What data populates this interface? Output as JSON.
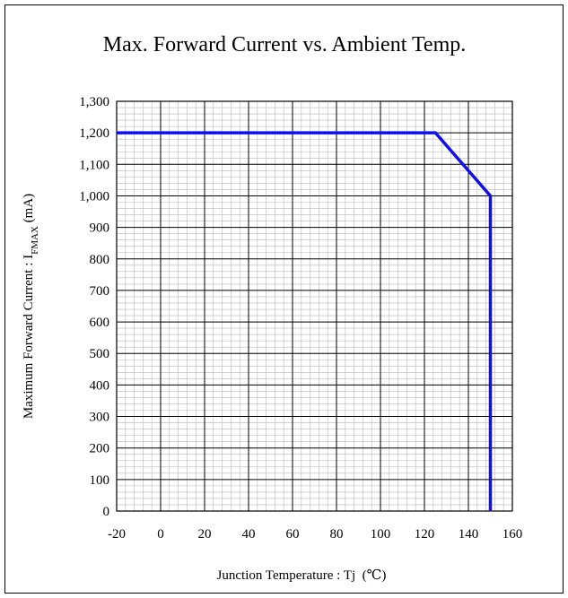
{
  "chart_data": {
    "type": "line",
    "title": "Max. Forward Current vs. Ambient Temp.",
    "xlabel": "Junction Temperature : Tj  (℃)",
    "ylabel": {
      "prefix": "Maximum Forward Current : I",
      "subscript": "FMAX",
      "suffix": " (mA)"
    },
    "xlim": [
      -20,
      160
    ],
    "ylim": [
      0,
      1300
    ],
    "x_ticks": [
      -20,
      0,
      20,
      40,
      60,
      80,
      100,
      120,
      140,
      160
    ],
    "x_tick_labels": [
      "-20",
      "0",
      "20",
      "40",
      "60",
      "80",
      "100",
      "120",
      "140",
      "160"
    ],
    "y_ticks": [
      0,
      100,
      200,
      300,
      400,
      500,
      600,
      700,
      800,
      900,
      1000,
      1100,
      1200,
      1300
    ],
    "y_tick_labels": [
      "0",
      "100",
      "200",
      "300",
      "400",
      "500",
      "600",
      "700",
      "800",
      "900",
      "1,000",
      "1,100",
      "1,200",
      "1,300"
    ],
    "x_minor_step": 4,
    "y_minor_step": 20,
    "grid": true,
    "series": [
      {
        "color": "#1010ee",
        "points": [
          [
            -20,
            1200
          ],
          [
            125,
            1200
          ],
          [
            150,
            1000
          ],
          [
            150,
            0
          ]
        ]
      }
    ]
  }
}
